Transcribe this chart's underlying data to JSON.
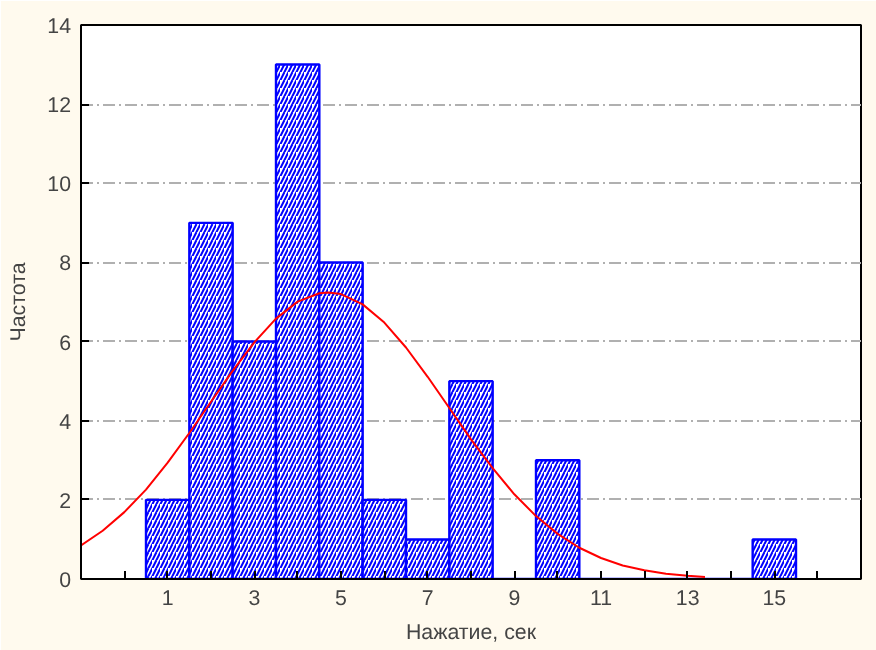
{
  "chart_data": {
    "type": "histogram",
    "xlabel": "Нажатие, сек",
    "ylabel": "Частота",
    "bins": [
      0.5,
      1.5,
      2.5,
      3.5,
      4.5,
      5.5,
      6.5,
      7.5,
      8.5,
      9.5,
      10.5,
      11.5,
      12.5,
      13.5,
      14.5,
      15.5
    ],
    "values": [
      2,
      9,
      6,
      13,
      8,
      2,
      1,
      5,
      0,
      3,
      0,
      0,
      0,
      0,
      1
    ],
    "color": "#0000ff",
    "series": [
      {
        "type": "line",
        "color": "#ff0000",
        "x": [
          -1,
          -0.5,
          0,
          0.5,
          1,
          1.5,
          2,
          2.5,
          3,
          3.5,
          4,
          4.5,
          4.7,
          5,
          5.5,
          6,
          6.5,
          7,
          7.5,
          8,
          8.5,
          9,
          9.5,
          10,
          10.5,
          11,
          11.5,
          12,
          12.5,
          13,
          13.4
        ],
        "values": [
          0.85,
          1.22,
          1.69,
          2.26,
          2.94,
          3.69,
          4.48,
          5.26,
          5.98,
          6.58,
          7.01,
          7.22,
          7.24,
          7.2,
          6.94,
          6.48,
          5.85,
          5.11,
          4.32,
          3.53,
          2.8,
          2.14,
          1.59,
          1.14,
          0.79,
          0.53,
          0.34,
          0.22,
          0.13,
          0.08,
          0.05
        ]
      }
    ],
    "xlim": [
      -1,
      17
    ],
    "xticks": [
      {
        "value": 0,
        "label": null
      },
      1,
      {
        "value": 2,
        "label": null
      },
      3,
      {
        "value": 4,
        "label": null
      },
      5,
      {
        "value": 6,
        "label": null
      },
      7,
      {
        "value": 8,
        "label": null
      },
      9,
      {
        "value": 10,
        "label": null
      },
      11,
      {
        "value": 12,
        "label": null
      },
      13,
      {
        "value": 14,
        "label": null
      },
      15,
      {
        "value": 16,
        "label": null
      }
    ],
    "ylim": [
      0,
      14
    ],
    "yticks": [
      0,
      2,
      4,
      6,
      8,
      10,
      12,
      14
    ],
    "grid": "y"
  }
}
